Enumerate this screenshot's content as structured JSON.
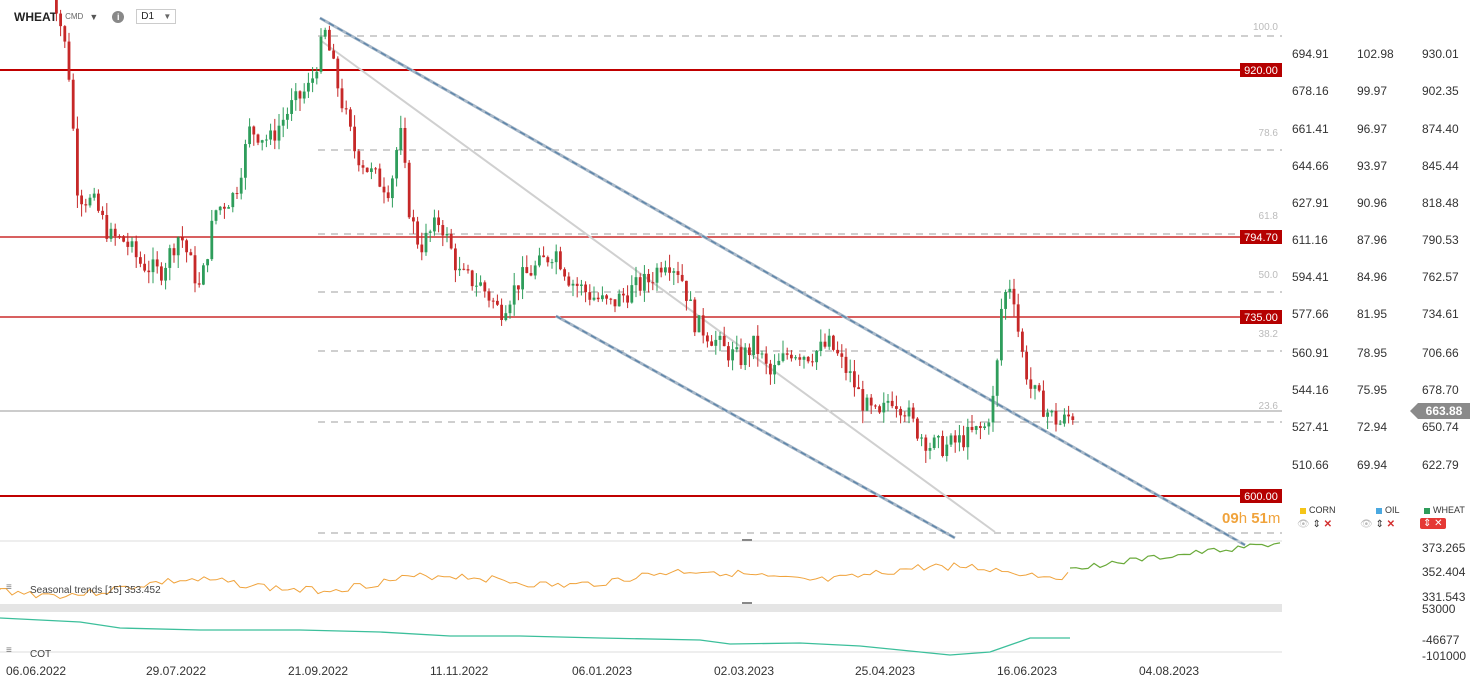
{
  "header": {
    "symbol": "WHEAT",
    "sub": "CMD",
    "info": "i",
    "timeframe": "D1"
  },
  "price_axis": {
    "col1": [
      "694.91",
      "678.16",
      "661.41",
      "644.66",
      "627.91",
      "611.16",
      "594.41",
      "577.66",
      "560.91",
      "544.16",
      "527.41",
      "510.66"
    ],
    "col2": [
      "102.98",
      "99.97",
      "96.97",
      "93.97",
      "90.96",
      "87.96",
      "84.96",
      "81.95",
      "78.95",
      "75.95",
      "72.94",
      "69.94"
    ],
    "col3": [
      "930.01",
      "902.35",
      "874.40",
      "845.44",
      "818.48",
      "790.53",
      "762.57",
      "734.61",
      "706.66",
      "678.70",
      "650.74",
      "622.79"
    ]
  },
  "levels": [
    {
      "label": "920.00",
      "thick": true
    },
    {
      "label": "794.70",
      "thick": false
    },
    {
      "label": "735.00",
      "thick": false
    },
    {
      "label": "600.00",
      "thick": true
    }
  ],
  "fibs": [
    "100.0",
    "78.6",
    "61.8",
    "50.0",
    "38.2",
    "23.6"
  ],
  "current_price": "663.88",
  "timer": {
    "h": "09",
    "m": "51",
    "sep_h": "h ",
    "sep_m": "m"
  },
  "legend": {
    "corn": {
      "name": "CORN",
      "color": "#f5c518"
    },
    "oil": {
      "name": "OIL",
      "color": "#4aa8e0"
    },
    "wheat": {
      "name": "WHEAT",
      "color": "#2e9d5b"
    }
  },
  "seasonal": {
    "label": "Seasonal trends [15] 353.452",
    "axis": [
      "373.265",
      "352.404",
      "331.543"
    ]
  },
  "cot": {
    "label": "COT",
    "axis": [
      "53000",
      "-46677",
      "-101000"
    ]
  },
  "x_axis": [
    "06.06.2022",
    "29.07.2022",
    "21.09.2022",
    "11.11.2022",
    "06.01.2023",
    "02.03.2023",
    "25.04.2023",
    "16.06.2023",
    "04.08.2023"
  ],
  "colors": {
    "up": "#2e9d5b",
    "down": "#c62828",
    "level": "#c00000",
    "orange": "#f0a33c",
    "green": "#6aaa3a",
    "cot": "#3cbf9b"
  }
}
